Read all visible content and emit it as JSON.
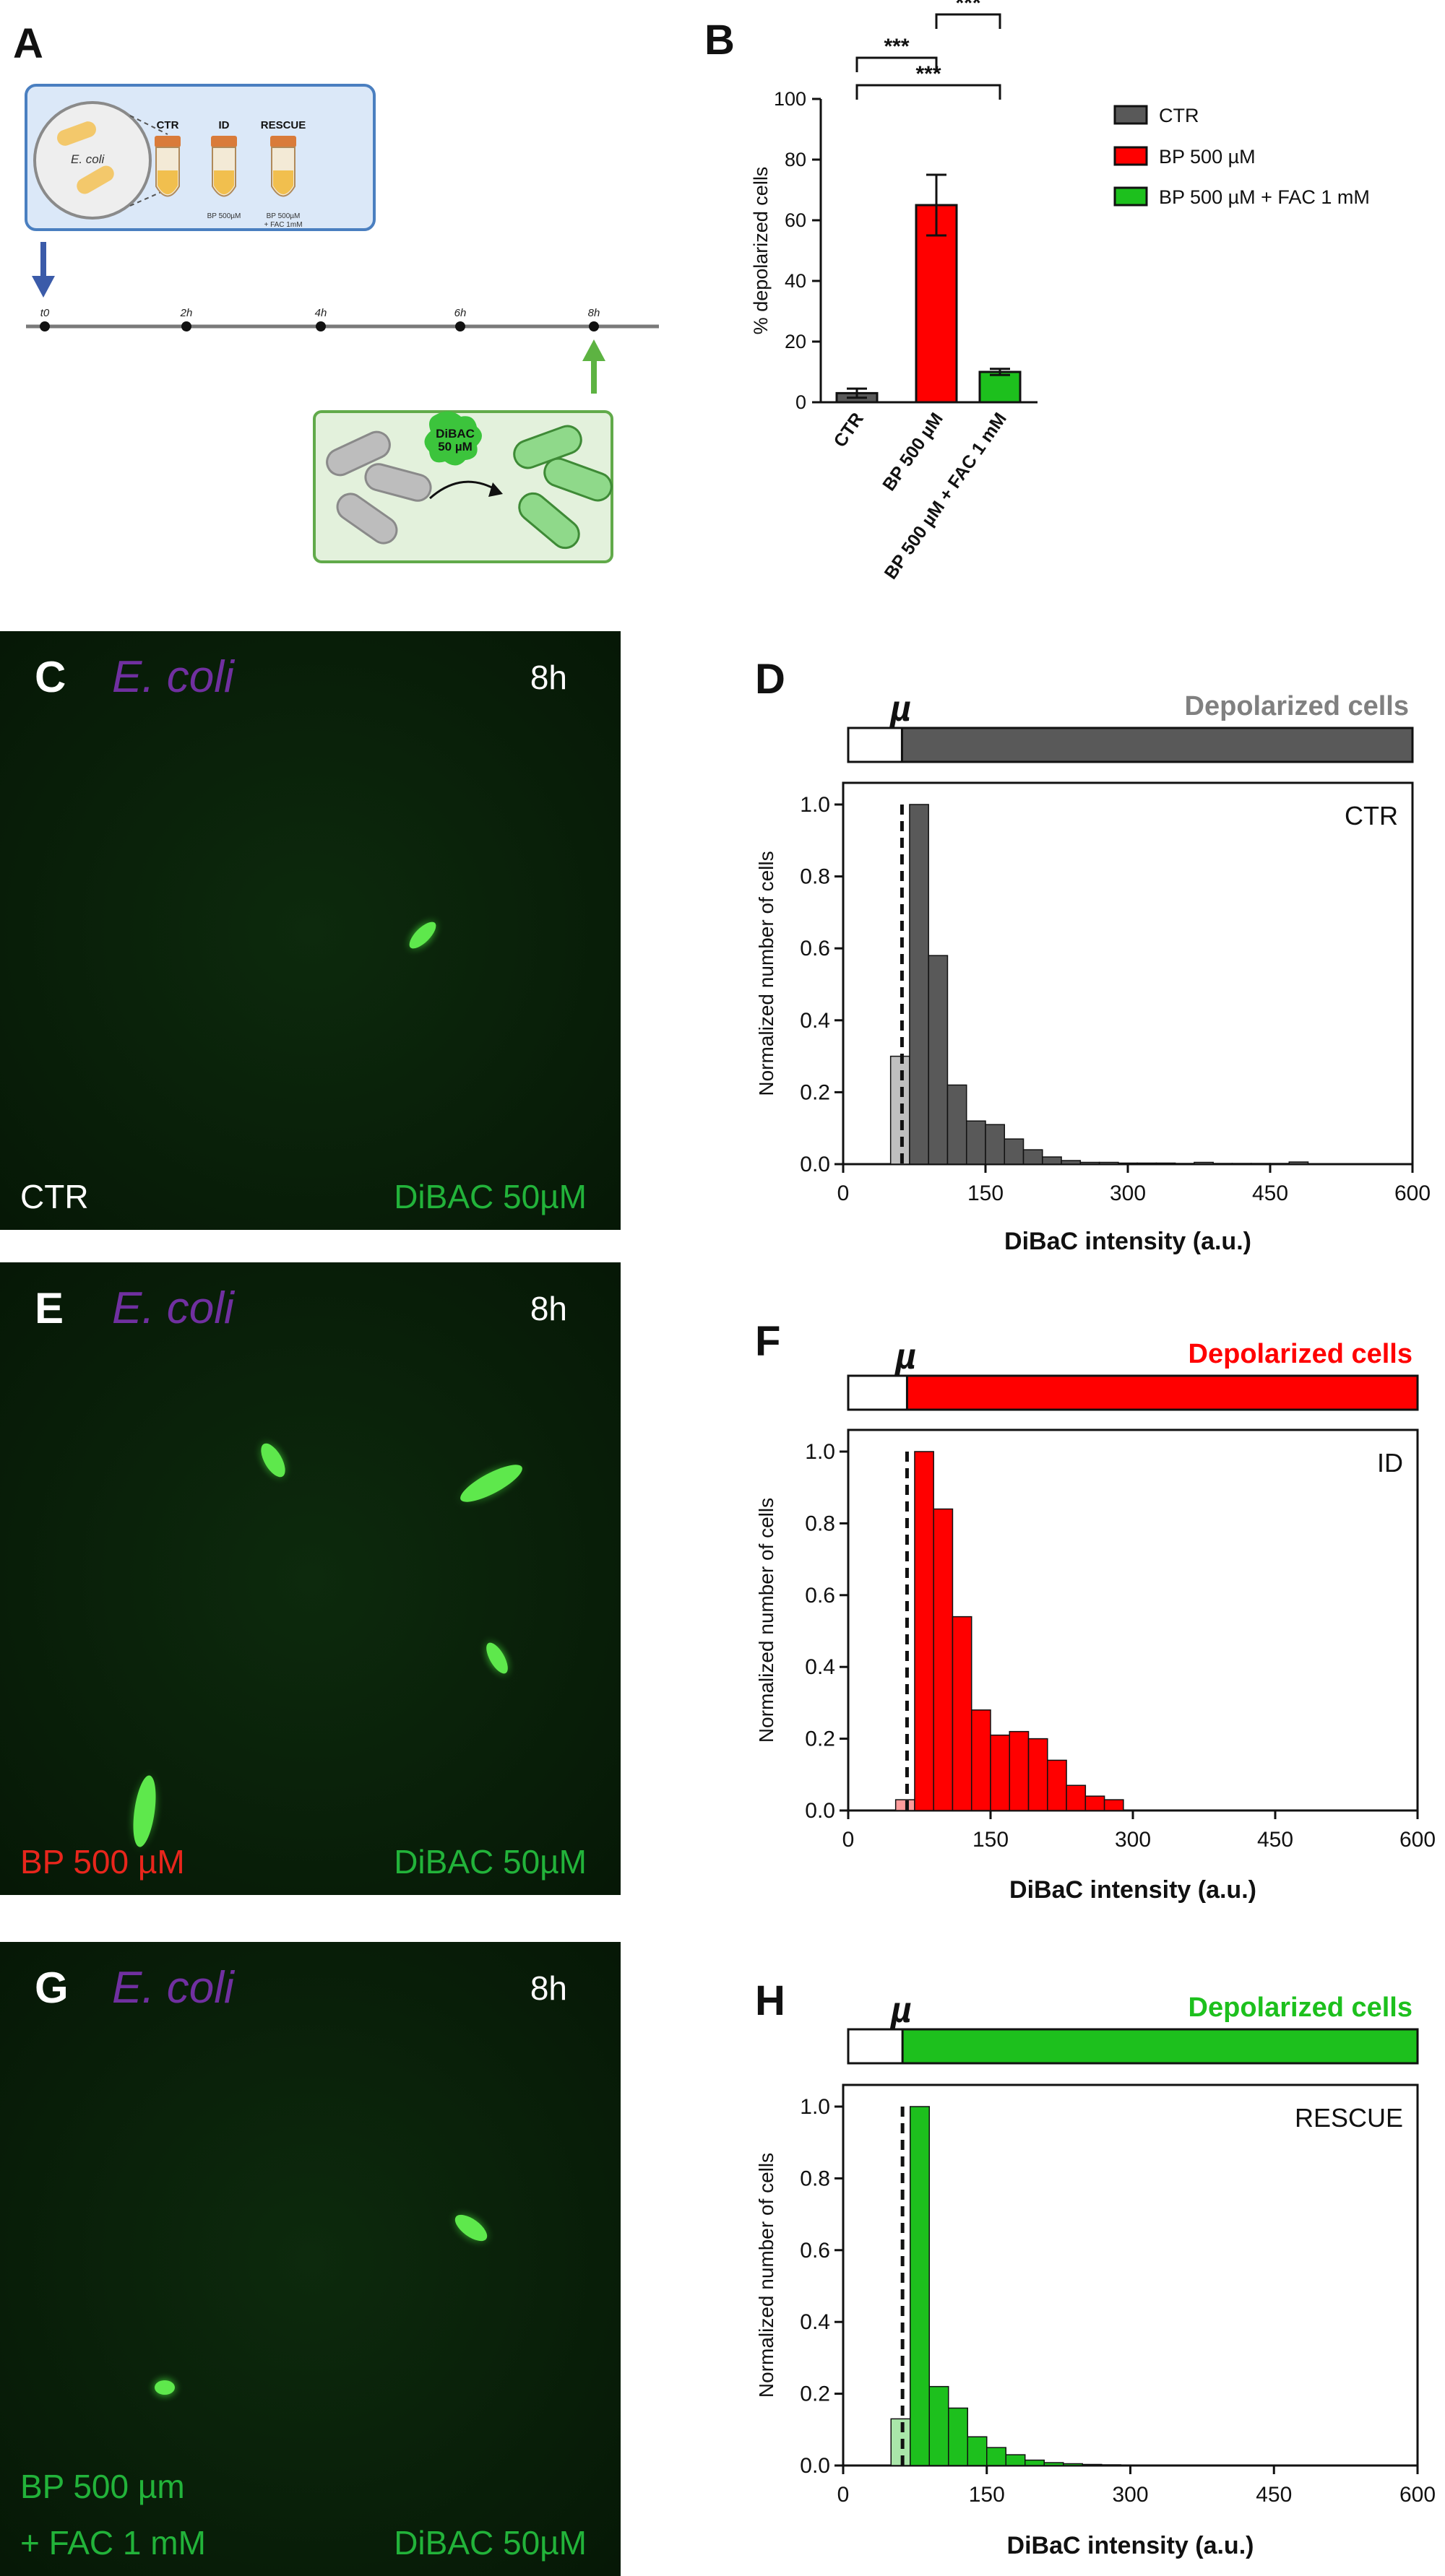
{
  "panels": {
    "A": "A",
    "B": "B",
    "C": "C",
    "D": "D",
    "E": "E",
    "F": "F",
    "G": "G",
    "H": "H"
  },
  "schematic": {
    "ecoli": "E. coli",
    "tubes": [
      "CTR",
      "ID",
      "RESCUE"
    ],
    "tube_captions": [
      "",
      "BP 500µM",
      "BP 500µM\n+ FAC 1mM"
    ],
    "timepoints": [
      "t0",
      "2h",
      "4h",
      "6h",
      "8h"
    ],
    "dye": "DiBAC\n50 µM"
  },
  "micrographs": [
    {
      "species": "E. coli",
      "time": "8h",
      "condition": [
        "CTR"
      ],
      "stain": "DiBAC 50µM",
      "condition_color": "#ffffff"
    },
    {
      "species": "E. coli",
      "time": "8h",
      "condition": [
        "BP 500 µM"
      ],
      "stain": "DiBAC 50µM",
      "condition_color": "#e8261c"
    },
    {
      "species": "E. coli",
      "time": "8h",
      "condition": [
        "BP 500 µm",
        "+ FAC 1 mM"
      ],
      "stain": "DiBAC 50µM",
      "condition_color": "#22b33a"
    }
  ],
  "colors": {
    "ctr": "#595959",
    "bp": "#ff0000",
    "rescue": "#1dc01d",
    "micro_green": "#22b33a",
    "species": "#7030a0"
  },
  "chart_data": [
    {
      "type": "bar",
      "id": "B",
      "ylabel": "% depolarized cells",
      "ylim": [
        0,
        100
      ],
      "yticks": [
        0,
        20,
        40,
        60,
        80,
        100
      ],
      "categories": [
        "CTR",
        "BP 500 µM",
        "BP 500 µM + FAC 1 mM"
      ],
      "values": [
        3,
        65,
        10
      ],
      "errors": [
        1.5,
        10,
        1
      ],
      "colors": [
        "#595959",
        "#ff0000",
        "#1dc01d"
      ],
      "legend": [
        "CTR",
        "BP 500 µM",
        "BP 500 µM + FAC 1 mM"
      ],
      "significance": [
        "***",
        "***",
        "***"
      ]
    },
    {
      "type": "histogram",
      "id": "D",
      "label": "CTR",
      "bar_title": "Depolarized cells",
      "mu": "µ",
      "threshold": 62,
      "xlim": [
        0,
        600
      ],
      "ylim": [
        0,
        1.0
      ],
      "xticks": [
        0,
        150,
        300,
        450,
        600
      ],
      "yticks": [
        "0.0",
        "0.2",
        "0.4",
        "0.6",
        "0.8",
        "1.0"
      ],
      "xlabel": "DiBaC intensity (a.u.)",
      "ylabel": "Normalized number of cells",
      "bin_width": 20,
      "bins": [
        50,
        70,
        90,
        110,
        130,
        150,
        170,
        190,
        210,
        230,
        250,
        270,
        290,
        310,
        330,
        350,
        370,
        390,
        410,
        430,
        450,
        470
      ],
      "values": [
        0.3,
        1.0,
        0.58,
        0.22,
        0.12,
        0.11,
        0.07,
        0.04,
        0.02,
        0.01,
        0.005,
        0.005,
        0.003,
        0.003,
        0.003,
        0.002,
        0.005,
        0.002,
        0.002,
        0.002,
        0.002,
        0.006
      ],
      "color": "#595959",
      "light_color": "#bfbfbf"
    },
    {
      "type": "histogram",
      "id": "F",
      "label": "ID",
      "bar_title": "Depolarized cells",
      "mu": "µ",
      "threshold": 62,
      "xlim": [
        0,
        600
      ],
      "ylim": [
        0,
        1.0
      ],
      "xticks": [
        0,
        150,
        300,
        450,
        600
      ],
      "yticks": [
        "0.0",
        "0.2",
        "0.4",
        "0.6",
        "0.8",
        "1.0"
      ],
      "xlabel": "DiBaC intensity (a.u.)",
      "ylabel": "Normalized number of cells",
      "bin_width": 20,
      "bins": [
        50,
        70,
        90,
        110,
        130,
        150,
        170,
        190,
        210,
        230,
        250,
        270,
        290
      ],
      "values": [
        0.03,
        1.0,
        0.84,
        0.54,
        0.28,
        0.21,
        0.22,
        0.2,
        0.14,
        0.07,
        0.04,
        0.03,
        0.0
      ],
      "color": "#ff0000",
      "light_color": "#ff9b9b"
    },
    {
      "type": "histogram",
      "id": "H",
      "label": "RESCUE",
      "bar_title": "Depolarized cells",
      "mu": "µ",
      "threshold": 62,
      "xlim": [
        0,
        600
      ],
      "ylim": [
        0,
        1.0
      ],
      "xticks": [
        0,
        150,
        300,
        450,
        600
      ],
      "yticks": [
        "0.0",
        "0.2",
        "0.4",
        "0.6",
        "0.8",
        "1.0"
      ],
      "xlabel": "DiBaC intensity (a.u.)",
      "ylabel": "Normalized number of cells",
      "bin_width": 20,
      "bins": [
        50,
        70,
        90,
        110,
        130,
        150,
        170,
        190,
        210,
        230,
        250,
        270
      ],
      "values": [
        0.13,
        1.0,
        0.22,
        0.16,
        0.08,
        0.05,
        0.03,
        0.015,
        0.008,
        0.005,
        0.003,
        0.002
      ],
      "color": "#1dc01d",
      "light_color": "#a9e6a9"
    }
  ]
}
